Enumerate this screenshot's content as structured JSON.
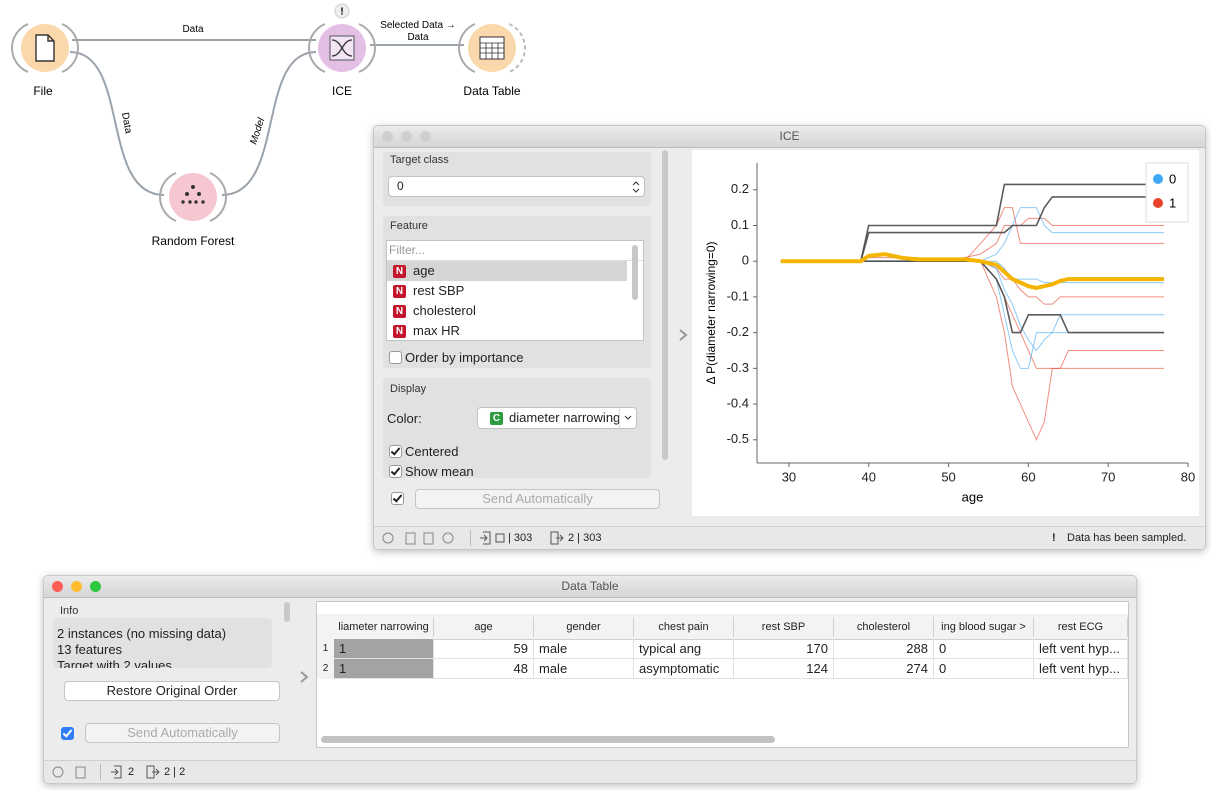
{
  "workflow": {
    "nodes": [
      {
        "label": "File"
      },
      {
        "label": "ICE",
        "warning": "!"
      },
      {
        "label": "Data Table"
      },
      {
        "label": "Random Forest"
      }
    ],
    "links": [
      {
        "label_lines": [
          "Data"
        ]
      },
      {
        "label_lines": [
          "Selected Data →",
          "Data"
        ]
      },
      {
        "label_lines": [
          "Data"
        ]
      },
      {
        "label_lines": [
          "Model"
        ]
      }
    ]
  },
  "ice_window": {
    "title": "ICE",
    "target_class_label": "Target class",
    "target_class": "0",
    "feature_label": "Feature",
    "filter_placeholder": "Filter...",
    "features": [
      {
        "icon": "N",
        "name": "age"
      },
      {
        "icon": "N",
        "name": "rest SBP"
      },
      {
        "icon": "N",
        "name": "cholesterol"
      },
      {
        "icon": "N",
        "name": "max HR"
      }
    ],
    "order_by_importance": "Order by importance",
    "display_label": "Display",
    "color_label": "Color:",
    "color_icon": "C",
    "color_value": "diameter narrowing",
    "centered": "Centered",
    "show_mean": "Show mean",
    "send_button": "Send Automatically",
    "status": {
      "input": "| 303",
      "output": "2 | 303",
      "warning": "!",
      "message": "Data has been sampled."
    }
  },
  "chart_data": {
    "type": "line",
    "xlabel": "age",
    "ylabel": "Δ P(diameter narrowing=0)",
    "xlim": [
      26,
      80
    ],
    "ylim": [
      -0.565,
      0.275
    ],
    "xticks": [
      30,
      40,
      50,
      60,
      70,
      80
    ],
    "yticks": [
      0.2,
      0.1,
      0,
      -0.1,
      -0.2,
      -0.3,
      -0.4,
      -0.5
    ],
    "legend": [
      {
        "label": "0",
        "color": "#3fa9f5"
      },
      {
        "label": "1",
        "color": "#e8412c"
      }
    ],
    "x": [
      29,
      39,
      40,
      42,
      44,
      46,
      48,
      50,
      52,
      54,
      56,
      57,
      58,
      59,
      60,
      61,
      62,
      63,
      64,
      65,
      66,
      77
    ],
    "series": [
      {
        "color": "#e8412c",
        "values": [
          0,
          0,
          0,
          0,
          0,
          0,
          0,
          0,
          0,
          0,
          -0.1,
          -0.2,
          -0.35,
          -0.4,
          -0.45,
          -0.5,
          -0.45,
          -0.3,
          -0.3,
          -0.25,
          -0.25,
          -0.25
        ]
      },
      {
        "color": "#e8412c",
        "values": [
          0,
          0,
          0,
          0,
          0,
          0,
          0,
          0,
          0.01,
          0.02,
          0.05,
          0.1,
          0.1,
          0.1,
          0.12,
          0.12,
          0.12,
          0.1,
          0.1,
          0.1,
          0.1,
          0.1
        ]
      },
      {
        "color": "#e8412c",
        "values": [
          0,
          0,
          0,
          0,
          0,
          0,
          0,
          0,
          0,
          0,
          -0.05,
          -0.1,
          -0.15,
          -0.2,
          -0.25,
          -0.3,
          -0.3,
          -0.3,
          -0.3,
          -0.3,
          -0.3,
          -0.3
        ]
      },
      {
        "color": "#e8412c",
        "values": [
          0,
          0,
          0.01,
          0.01,
          0.01,
          0.01,
          0,
          0,
          0,
          0,
          -0.02,
          -0.05,
          -0.05,
          -0.08,
          -0.1,
          -0.1,
          -0.12,
          -0.12,
          -0.1,
          -0.1,
          -0.1,
          -0.1
        ]
      },
      {
        "color": "#e8412c",
        "values": [
          0,
          0,
          0,
          0,
          0,
          0,
          0,
          0,
          0,
          0.05,
          0.1,
          0.15,
          0.15,
          0.05,
          0.05,
          0.05,
          0.05,
          0.05,
          0.05,
          0.05,
          0.05,
          0.05
        ]
      },
      {
        "color": "#3fa9f5",
        "values": [
          0,
          0,
          0,
          0,
          0,
          0,
          0,
          0,
          0,
          0,
          -0.05,
          -0.15,
          -0.25,
          -0.3,
          -0.3,
          -0.2,
          -0.2,
          -0.2,
          -0.2,
          -0.2,
          -0.2,
          -0.2
        ]
      },
      {
        "color": "#3fa9f5",
        "values": [
          0,
          0,
          0,
          0,
          0,
          0,
          0,
          0,
          0,
          0,
          0.02,
          0.05,
          0.1,
          0.15,
          0.15,
          0.15,
          0.1,
          0.08,
          0.08,
          0.08,
          0.08,
          0.08
        ]
      },
      {
        "color": "#3fa9f5",
        "values": [
          0,
          0,
          0,
          0,
          0,
          0,
          0,
          0,
          0,
          0,
          -0.02,
          -0.08,
          -0.12,
          -0.18,
          -0.22,
          -0.25,
          -0.22,
          -0.2,
          -0.15,
          -0.15,
          -0.15,
          -0.15
        ]
      },
      {
        "color": "#3fa9f5",
        "values": [
          0,
          0,
          0,
          0,
          0,
          0,
          0,
          0,
          0,
          0,
          0,
          -0.02,
          -0.05,
          -0.05,
          -0.05,
          -0.05,
          -0.06,
          -0.06,
          -0.06,
          -0.06,
          -0.06,
          -0.06
        ]
      },
      {
        "color": "#4a4a4a",
        "values": [
          0,
          0,
          0.1,
          0.1,
          0.1,
          0.1,
          0.1,
          0.1,
          0.1,
          0.1,
          0.1,
          0.215,
          0.215,
          0.215,
          0.215,
          0.215,
          0.215,
          0.215,
          0.215,
          0.215,
          0.215,
          0.215
        ]
      },
      {
        "color": "#4a4a4a",
        "values": [
          0,
          0,
          0,
          0,
          0,
          0,
          0,
          0,
          0,
          0,
          -0.05,
          -0.1,
          -0.2,
          -0.2,
          -0.15,
          -0.15,
          -0.15,
          -0.15,
          -0.15,
          -0.2,
          -0.2,
          -0.2
        ]
      },
      {
        "color": "#4a4a4a",
        "values": [
          0,
          0,
          0.08,
          0.08,
          0.08,
          0.08,
          0.08,
          0.08,
          0.08,
          0.08,
          0.08,
          0.08,
          0.1,
          0.1,
          0.1,
          0.1,
          0.15,
          0.18,
          0.18,
          0.18,
          0.18,
          0.18
        ]
      }
    ],
    "mean": {
      "color": "#f5b400",
      "values": [
        0,
        0,
        0.015,
        0.02,
        0.01,
        0.005,
        0.005,
        0.005,
        0.005,
        0,
        -0.01,
        -0.03,
        -0.05,
        -0.06,
        -0.07,
        -0.075,
        -0.07,
        -0.065,
        -0.055,
        -0.05,
        -0.05,
        -0.05
      ]
    }
  },
  "data_table_window": {
    "title": "Data Table",
    "info_label": "Info",
    "info_lines": [
      "2 instances (no missing data)",
      "13 features",
      "Target with 2 values"
    ],
    "restore_button": "Restore Original Order",
    "send_button": "Send Automatically",
    "table": {
      "columns": [
        "liameter narrowing",
        "age",
        "gender",
        "chest pain",
        "rest SBP",
        "cholesterol",
        "ing blood sugar >",
        "rest ECG"
      ],
      "rows": [
        {
          "index": 1,
          "cells": [
            "1",
            59,
            "male",
            "typical ang",
            170,
            288,
            "0",
            "left vent hyp..."
          ]
        },
        {
          "index": 2,
          "cells": [
            "1",
            48,
            "male",
            "asymptomatic",
            124,
            274,
            "0",
            "left vent hyp..."
          ]
        }
      ]
    },
    "status": {
      "input": "2",
      "output": "2 | 2"
    }
  }
}
